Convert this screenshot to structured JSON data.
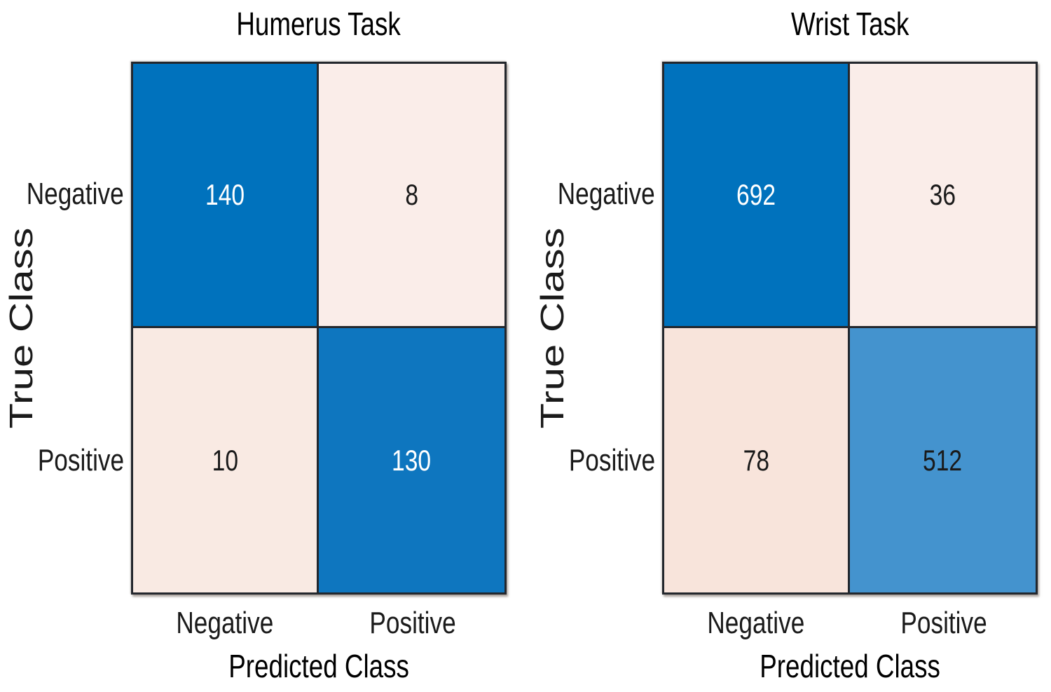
{
  "figure": {
    "background": "#ffffff",
    "text_color": "#1a1a1a",
    "grid_border_color": "#23272d"
  },
  "palette": {
    "diagonal_blue_max": "#0072BD",
    "diagonal_blue_130": "#0E76BF",
    "diagonal_blue_512": "#4493CE",
    "off_diagonal_lightest": "#FAEDE9",
    "off_diagonal_light": "#F9EAE3",
    "off_diagonal_deeper": "#F8E4DB"
  },
  "charts": [
    {
      "title": "Humerus Task",
      "ylabel": "True Class",
      "xlabel": "Predicted Class",
      "row_labels": [
        "Negative",
        "Positive"
      ],
      "col_labels": [
        "Negative",
        "Positive"
      ],
      "cells": [
        [
          {
            "value": "140",
            "bg": "#0072BD",
            "fg": "#FFFFFF"
          },
          {
            "value": "8",
            "bg": "#FAEDE9",
            "fg": "#1A1A1A"
          }
        ],
        [
          {
            "value": "10",
            "bg": "#F9EAE3",
            "fg": "#1A1A1A"
          },
          {
            "value": "130",
            "bg": "#0E76BF",
            "fg": "#FFFFFF"
          }
        ]
      ]
    },
    {
      "title": "Wrist Task",
      "ylabel": "True Class",
      "xlabel": "Predicted Class",
      "row_labels": [
        "Negative",
        "Positive"
      ],
      "col_labels": [
        "Negative",
        "Positive"
      ],
      "cells": [
        [
          {
            "value": "692",
            "bg": "#0072BD",
            "fg": "#FFFFFF"
          },
          {
            "value": "36",
            "bg": "#FAEDE9",
            "fg": "#1A1A1A"
          }
        ],
        [
          {
            "value": "78",
            "bg": "#F8E4DB",
            "fg": "#1A1A1A"
          },
          {
            "value": "512",
            "bg": "#4493CE",
            "fg": "#1A1A1A"
          }
        ]
      ]
    }
  ],
  "chart_data": [
    {
      "type": "heatmap",
      "subtype": "confusion-matrix",
      "title": "Humerus Task",
      "xlabel": "Predicted Class",
      "ylabel": "True Class",
      "x_categories": [
        "Negative",
        "Positive"
      ],
      "y_categories": [
        "Negative",
        "Positive"
      ],
      "values": [
        [
          140,
          8
        ],
        [
          10,
          130
        ]
      ],
      "value_range": [
        0,
        140
      ],
      "grid": true,
      "legend": false
    },
    {
      "type": "heatmap",
      "subtype": "confusion-matrix",
      "title": "Wrist Task",
      "xlabel": "Predicted Class",
      "ylabel": "True Class",
      "x_categories": [
        "Negative",
        "Positive"
      ],
      "y_categories": [
        "Negative",
        "Positive"
      ],
      "values": [
        [
          692,
          36
        ],
        [
          78,
          512
        ]
      ],
      "value_range": [
        0,
        692
      ],
      "grid": true,
      "legend": false
    }
  ]
}
